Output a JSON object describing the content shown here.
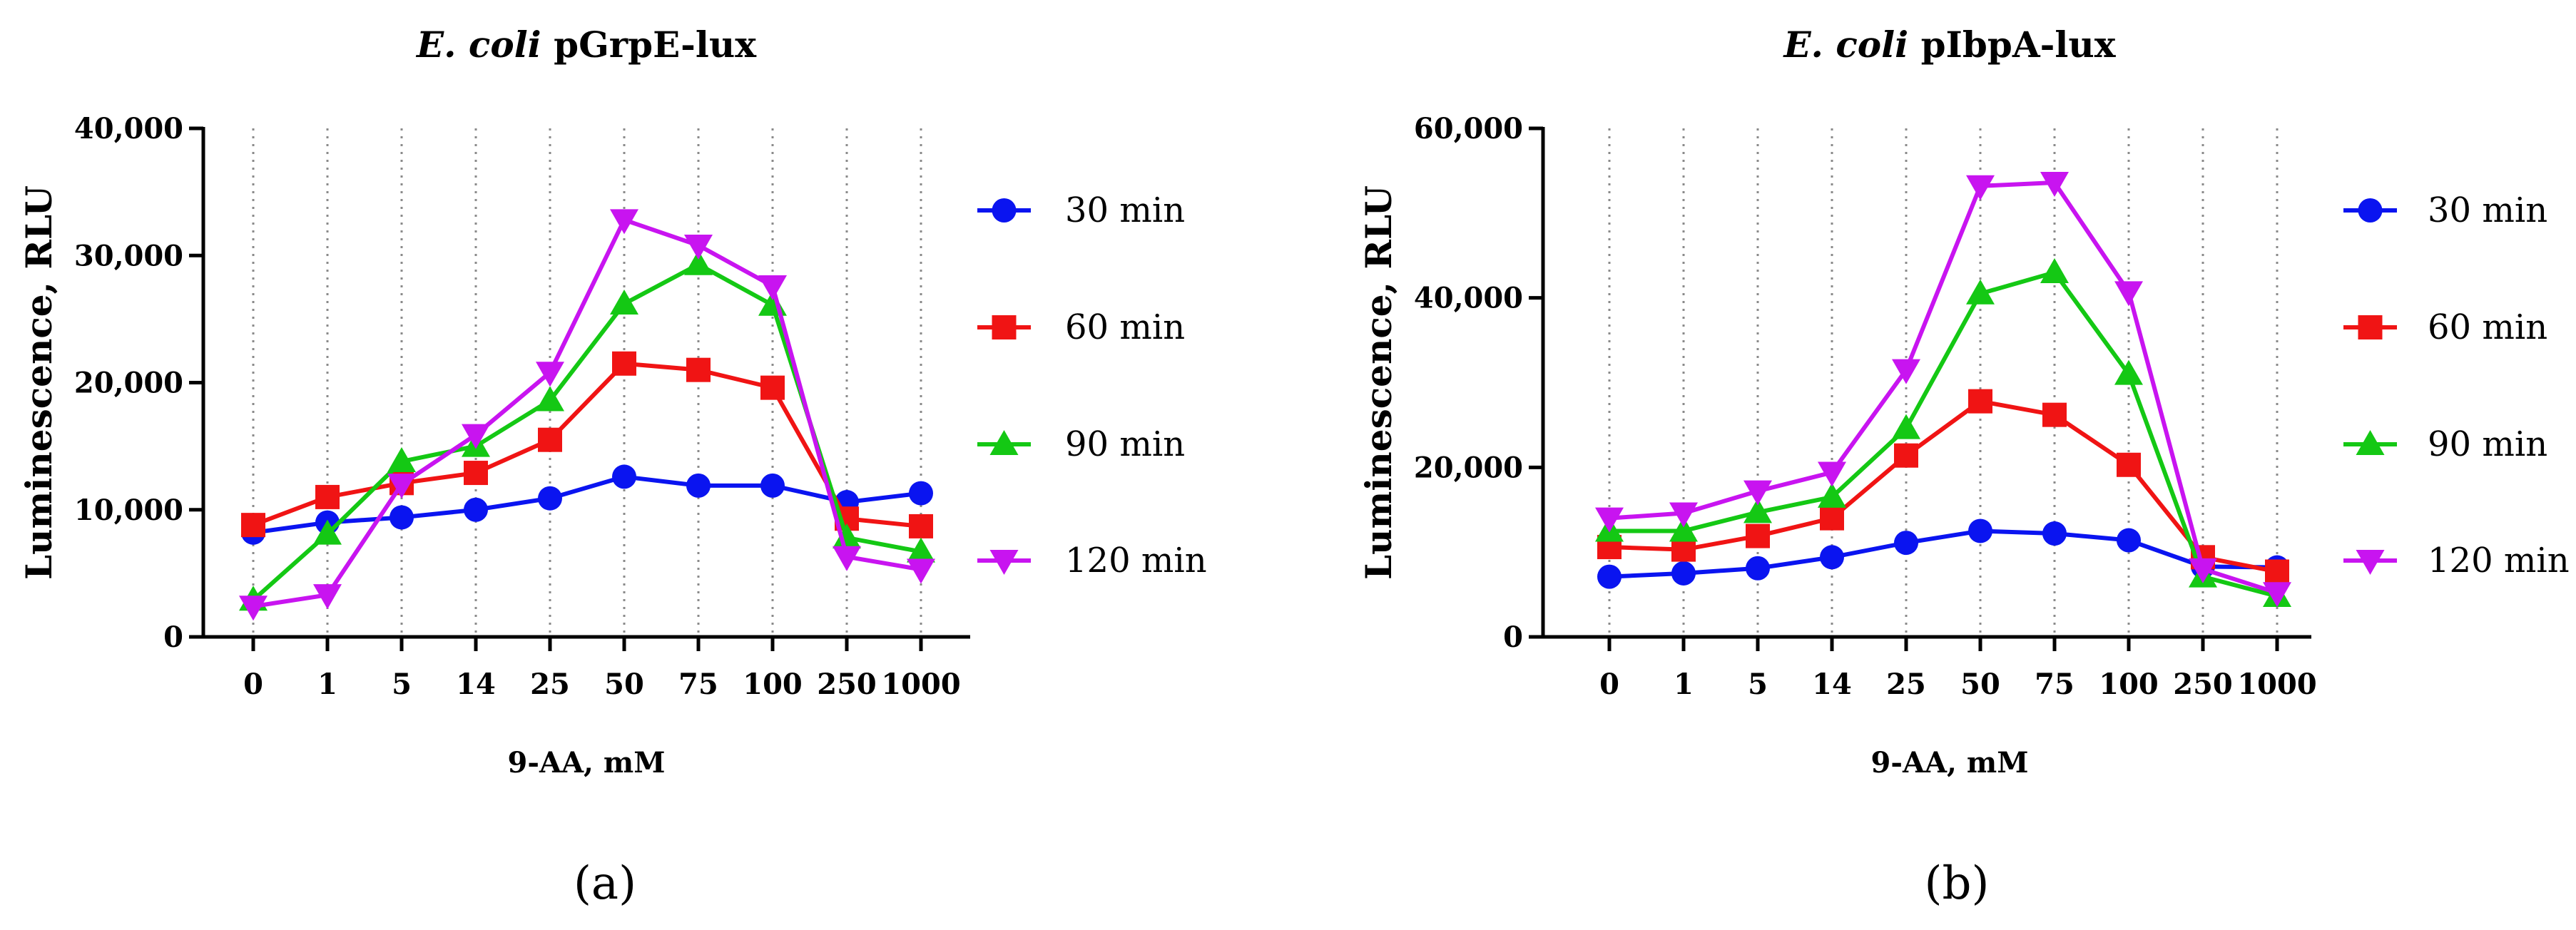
{
  "colors": {
    "s30": "#0a14f0",
    "s60": "#f01414",
    "s90": "#14c814",
    "s120": "#c814f0",
    "grid": "#8a8a8a",
    "axis": "#000000"
  },
  "chart_data": [
    {
      "type": "line",
      "panel_label": "(a)",
      "title_italic": "E. coli",
      "title_rest": "pGrpE-lux",
      "xlabel": "9-AA, mM",
      "ylabel": "Luminescence, RLU",
      "categories": [
        "0",
        "1",
        "5",
        "14",
        "25",
        "50",
        "75",
        "100",
        "250",
        "1000"
      ],
      "ylim": [
        0,
        40000
      ],
      "yticks": [
        0,
        10000,
        20000,
        30000,
        40000
      ],
      "ytick_labels": [
        "0",
        "10,000",
        "20,000",
        "30,000",
        "40,000"
      ],
      "grid": "vertical dotted",
      "legend_position": "right",
      "series": [
        {
          "name": "30 min",
          "marker": "circle",
          "color_key": "s30",
          "values": [
            8200,
            9000,
            9400,
            10000,
            10900,
            12600,
            11900,
            11900,
            10600,
            11300
          ]
        },
        {
          "name": "60 min",
          "marker": "square",
          "color_key": "s60",
          "values": [
            8800,
            11000,
            12100,
            12900,
            15500,
            21500,
            21000,
            19600,
            9300,
            8700
          ]
        },
        {
          "name": "90 min",
          "marker": "triangle-up",
          "color_key": "s90",
          "values": [
            2900,
            8100,
            13800,
            15000,
            18600,
            26200,
            29300,
            26100,
            7800,
            6700
          ]
        },
        {
          "name": "120 min",
          "marker": "triangle-down",
          "color_key": "s120",
          "values": [
            2400,
            3300,
            12000,
            15900,
            20800,
            32800,
            30800,
            27600,
            6300,
            5300
          ]
        }
      ]
    },
    {
      "type": "line",
      "panel_label": "(b)",
      "title_italic": "E. coli",
      "title_rest": "pIbpA-lux",
      "xlabel": "9-AA, mM",
      "ylabel": "Luminescence, RLU",
      "categories": [
        "0",
        "1",
        "5",
        "14",
        "25",
        "50",
        "75",
        "100",
        "250",
        "1000"
      ],
      "ylim": [
        0,
        60000
      ],
      "yticks": [
        0,
        20000,
        40000,
        60000
      ],
      "ytick_labels": [
        "0",
        "20,000",
        "40,000",
        "60,000"
      ],
      "grid": "vertical dotted",
      "legend_position": "right",
      "series": [
        {
          "name": "30 min",
          "marker": "circle",
          "color_key": "s30",
          "values": [
            7100,
            7500,
            8100,
            9400,
            11100,
            12500,
            12200,
            11400,
            8300,
            8200
          ]
        },
        {
          "name": "60 min",
          "marker": "square",
          "color_key": "s60",
          "values": [
            10600,
            10300,
            11900,
            14000,
            21400,
            27800,
            26200,
            20300,
            9400,
            7700
          ]
        },
        {
          "name": "90 min",
          "marker": "triangle-up",
          "color_key": "s90",
          "values": [
            12500,
            12500,
            14700,
            16500,
            24600,
            40500,
            43000,
            31000,
            7100,
            4800
          ]
        },
        {
          "name": "120 min",
          "marker": "triangle-down",
          "color_key": "s120",
          "values": [
            14000,
            14600,
            17200,
            19400,
            31500,
            53200,
            53600,
            40700,
            8000,
            5200
          ]
        }
      ]
    }
  ]
}
